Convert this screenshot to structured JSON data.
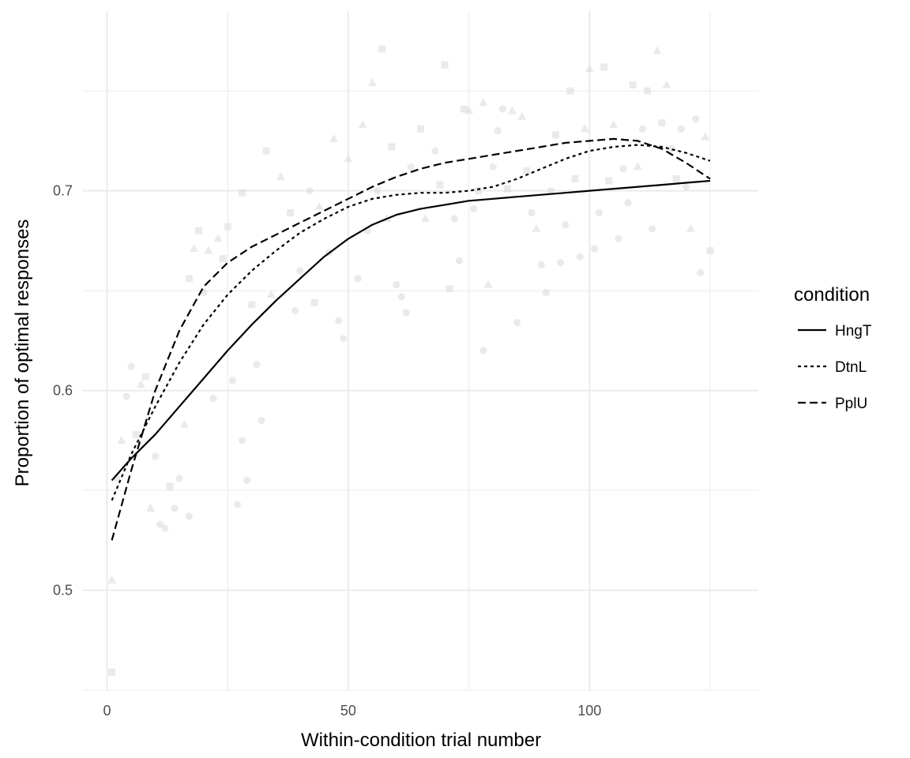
{
  "chart_data": {
    "type": "line",
    "xlabel": "Within-condition trial number",
    "ylabel": "Proportion of optimal responses",
    "xlim": [
      -5,
      135
    ],
    "ylim": [
      0.45,
      0.79
    ],
    "x_ticks": [
      0,
      50,
      100
    ],
    "x_tick_labels": [
      "0",
      "50",
      "100"
    ],
    "y_ticks": [
      0.5,
      0.6,
      0.7
    ],
    "y_tick_labels": [
      "0.5",
      "0.6",
      "0.7"
    ],
    "grid": true,
    "legend": {
      "title": "condition",
      "placement": "right"
    },
    "colors": {
      "line": "#000000",
      "points": "#d9d9d9",
      "grid": "#ebebeb"
    },
    "series": [
      {
        "name": "HngT",
        "dash": "solid",
        "x": [
          1,
          5,
          10,
          15,
          20,
          25,
          30,
          35,
          40,
          45,
          50,
          55,
          60,
          65,
          70,
          75,
          80,
          85,
          90,
          95,
          100,
          105,
          110,
          115,
          120,
          125
        ],
        "y": [
          0.555,
          0.566,
          0.578,
          0.592,
          0.606,
          0.62,
          0.633,
          0.645,
          0.656,
          0.667,
          0.676,
          0.683,
          0.688,
          0.691,
          0.693,
          0.695,
          0.696,
          0.697,
          0.698,
          0.699,
          0.7,
          0.701,
          0.702,
          0.703,
          0.704,
          0.705
        ]
      },
      {
        "name": "DtnL",
        "dash": "dotted",
        "x": [
          1,
          5,
          10,
          15,
          20,
          25,
          30,
          35,
          40,
          45,
          50,
          55,
          60,
          65,
          70,
          75,
          80,
          85,
          90,
          95,
          100,
          105,
          110,
          115,
          120,
          125
        ],
        "y": [
          0.545,
          0.568,
          0.592,
          0.614,
          0.633,
          0.648,
          0.66,
          0.67,
          0.679,
          0.686,
          0.692,
          0.696,
          0.698,
          0.699,
          0.699,
          0.7,
          0.702,
          0.706,
          0.711,
          0.716,
          0.72,
          0.722,
          0.723,
          0.722,
          0.719,
          0.715
        ]
      },
      {
        "name": "PplU",
        "dash": "dashed",
        "x": [
          1,
          5,
          10,
          15,
          20,
          25,
          30,
          35,
          40,
          45,
          50,
          55,
          60,
          65,
          70,
          75,
          80,
          85,
          90,
          95,
          100,
          105,
          110,
          115,
          120,
          125
        ],
        "y": [
          0.525,
          0.56,
          0.6,
          0.63,
          0.652,
          0.664,
          0.672,
          0.678,
          0.684,
          0.69,
          0.696,
          0.702,
          0.707,
          0.711,
          0.714,
          0.716,
          0.718,
          0.72,
          0.722,
          0.724,
          0.725,
          0.726,
          0.725,
          0.721,
          0.714,
          0.706
        ]
      }
    ],
    "points": [
      {
        "x": 1,
        "y": 0.459,
        "shape": "square"
      },
      {
        "x": 1,
        "y": 0.505,
        "shape": "triangle"
      },
      {
        "x": 2,
        "y": 0.556,
        "shape": "circle"
      },
      {
        "x": 3,
        "y": 0.575,
        "shape": "triangle"
      },
      {
        "x": 4,
        "y": 0.597,
        "shape": "circle"
      },
      {
        "x": 5,
        "y": 0.612,
        "shape": "circle"
      },
      {
        "x": 6,
        "y": 0.578,
        "shape": "square"
      },
      {
        "x": 7,
        "y": 0.603,
        "shape": "triangle"
      },
      {
        "x": 8,
        "y": 0.607,
        "shape": "square"
      },
      {
        "x": 9,
        "y": 0.541,
        "shape": "triangle"
      },
      {
        "x": 10,
        "y": 0.567,
        "shape": "circle"
      },
      {
        "x": 11,
        "y": 0.533,
        "shape": "circle"
      },
      {
        "x": 12,
        "y": 0.531,
        "shape": "circle"
      },
      {
        "x": 13,
        "y": 0.552,
        "shape": "square"
      },
      {
        "x": 14,
        "y": 0.541,
        "shape": "circle"
      },
      {
        "x": 15,
        "y": 0.556,
        "shape": "circle"
      },
      {
        "x": 16,
        "y": 0.583,
        "shape": "triangle"
      },
      {
        "x": 17,
        "y": 0.537,
        "shape": "circle"
      },
      {
        "x": 17,
        "y": 0.656,
        "shape": "square"
      },
      {
        "x": 18,
        "y": 0.671,
        "shape": "triangle"
      },
      {
        "x": 19,
        "y": 0.68,
        "shape": "square"
      },
      {
        "x": 20,
        "y": 0.649,
        "shape": "circle"
      },
      {
        "x": 21,
        "y": 0.67,
        "shape": "triangle"
      },
      {
        "x": 22,
        "y": 0.596,
        "shape": "circle"
      },
      {
        "x": 23,
        "y": 0.676,
        "shape": "triangle"
      },
      {
        "x": 24,
        "y": 0.666,
        "shape": "square"
      },
      {
        "x": 25,
        "y": 0.682,
        "shape": "square"
      },
      {
        "x": 26,
        "y": 0.605,
        "shape": "circle"
      },
      {
        "x": 27,
        "y": 0.543,
        "shape": "circle"
      },
      {
        "x": 28,
        "y": 0.699,
        "shape": "square"
      },
      {
        "x": 28,
        "y": 0.575,
        "shape": "circle"
      },
      {
        "x": 29,
        "y": 0.555,
        "shape": "circle"
      },
      {
        "x": 30,
        "y": 0.643,
        "shape": "square"
      },
      {
        "x": 31,
        "y": 0.613,
        "shape": "circle"
      },
      {
        "x": 32,
        "y": 0.585,
        "shape": "circle"
      },
      {
        "x": 33,
        "y": 0.72,
        "shape": "square"
      },
      {
        "x": 34,
        "y": 0.648,
        "shape": "triangle"
      },
      {
        "x": 36,
        "y": 0.707,
        "shape": "triangle"
      },
      {
        "x": 38,
        "y": 0.689,
        "shape": "square"
      },
      {
        "x": 39,
        "y": 0.64,
        "shape": "circle"
      },
      {
        "x": 40,
        "y": 0.66,
        "shape": "circle"
      },
      {
        "x": 42,
        "y": 0.7,
        "shape": "circle"
      },
      {
        "x": 43,
        "y": 0.644,
        "shape": "square"
      },
      {
        "x": 44,
        "y": 0.692,
        "shape": "triangle"
      },
      {
        "x": 46,
        "y": 0.669,
        "shape": "circle"
      },
      {
        "x": 47,
        "y": 0.726,
        "shape": "triangle"
      },
      {
        "x": 48,
        "y": 0.635,
        "shape": "circle"
      },
      {
        "x": 49,
        "y": 0.626,
        "shape": "circle"
      },
      {
        "x": 50,
        "y": 0.716,
        "shape": "triangle"
      },
      {
        "x": 52,
        "y": 0.656,
        "shape": "circle"
      },
      {
        "x": 53,
        "y": 0.733,
        "shape": "triangle"
      },
      {
        "x": 54,
        "y": 0.68,
        "shape": "circle"
      },
      {
        "x": 55,
        "y": 0.754,
        "shape": "triangle"
      },
      {
        "x": 56,
        "y": 0.7,
        "shape": "circle"
      },
      {
        "x": 57,
        "y": 0.771,
        "shape": "square"
      },
      {
        "x": 58,
        "y": 0.686,
        "shape": "triangle"
      },
      {
        "x": 59,
        "y": 0.722,
        "shape": "square"
      },
      {
        "x": 60,
        "y": 0.653,
        "shape": "circle"
      },
      {
        "x": 61,
        "y": 0.647,
        "shape": "circle"
      },
      {
        "x": 62,
        "y": 0.639,
        "shape": "circle"
      },
      {
        "x": 63,
        "y": 0.712,
        "shape": "circle"
      },
      {
        "x": 65,
        "y": 0.731,
        "shape": "square"
      },
      {
        "x": 66,
        "y": 0.686,
        "shape": "triangle"
      },
      {
        "x": 68,
        "y": 0.72,
        "shape": "circle"
      },
      {
        "x": 69,
        "y": 0.703,
        "shape": "square"
      },
      {
        "x": 70,
        "y": 0.763,
        "shape": "square"
      },
      {
        "x": 71,
        "y": 0.651,
        "shape": "square"
      },
      {
        "x": 72,
        "y": 0.686,
        "shape": "circle"
      },
      {
        "x": 73,
        "y": 0.665,
        "shape": "circle"
      },
      {
        "x": 74,
        "y": 0.741,
        "shape": "square"
      },
      {
        "x": 75,
        "y": 0.74,
        "shape": "triangle"
      },
      {
        "x": 76,
        "y": 0.691,
        "shape": "circle"
      },
      {
        "x": 77,
        "y": 0.7,
        "shape": "square"
      },
      {
        "x": 78,
        "y": 0.62,
        "shape": "circle"
      },
      {
        "x": 78,
        "y": 0.744,
        "shape": "triangle"
      },
      {
        "x": 79,
        "y": 0.653,
        "shape": "triangle"
      },
      {
        "x": 80,
        "y": 0.712,
        "shape": "circle"
      },
      {
        "x": 81,
        "y": 0.73,
        "shape": "circle"
      },
      {
        "x": 82,
        "y": 0.741,
        "shape": "circle"
      },
      {
        "x": 83,
        "y": 0.701,
        "shape": "square"
      },
      {
        "x": 84,
        "y": 0.74,
        "shape": "triangle"
      },
      {
        "x": 85,
        "y": 0.634,
        "shape": "circle"
      },
      {
        "x": 86,
        "y": 0.737,
        "shape": "triangle"
      },
      {
        "x": 87,
        "y": 0.71,
        "shape": "square"
      },
      {
        "x": 88,
        "y": 0.689,
        "shape": "circle"
      },
      {
        "x": 89,
        "y": 0.681,
        "shape": "triangle"
      },
      {
        "x": 90,
        "y": 0.663,
        "shape": "circle"
      },
      {
        "x": 91,
        "y": 0.649,
        "shape": "circle"
      },
      {
        "x": 92,
        "y": 0.7,
        "shape": "circle"
      },
      {
        "x": 93,
        "y": 0.728,
        "shape": "square"
      },
      {
        "x": 94,
        "y": 0.664,
        "shape": "circle"
      },
      {
        "x": 95,
        "y": 0.683,
        "shape": "circle"
      },
      {
        "x": 96,
        "y": 0.75,
        "shape": "square"
      },
      {
        "x": 97,
        "y": 0.706,
        "shape": "square"
      },
      {
        "x": 98,
        "y": 0.667,
        "shape": "circle"
      },
      {
        "x": 99,
        "y": 0.731,
        "shape": "triangle"
      },
      {
        "x": 100,
        "y": 0.761,
        "shape": "triangle"
      },
      {
        "x": 101,
        "y": 0.671,
        "shape": "circle"
      },
      {
        "x": 102,
        "y": 0.689,
        "shape": "circle"
      },
      {
        "x": 103,
        "y": 0.762,
        "shape": "square"
      },
      {
        "x": 104,
        "y": 0.705,
        "shape": "square"
      },
      {
        "x": 105,
        "y": 0.733,
        "shape": "triangle"
      },
      {
        "x": 106,
        "y": 0.676,
        "shape": "circle"
      },
      {
        "x": 107,
        "y": 0.711,
        "shape": "circle"
      },
      {
        "x": 108,
        "y": 0.694,
        "shape": "circle"
      },
      {
        "x": 109,
        "y": 0.753,
        "shape": "square"
      },
      {
        "x": 110,
        "y": 0.712,
        "shape": "triangle"
      },
      {
        "x": 111,
        "y": 0.731,
        "shape": "circle"
      },
      {
        "x": 112,
        "y": 0.75,
        "shape": "square"
      },
      {
        "x": 113,
        "y": 0.681,
        "shape": "circle"
      },
      {
        "x": 114,
        "y": 0.77,
        "shape": "triangle"
      },
      {
        "x": 115,
        "y": 0.734,
        "shape": "square"
      },
      {
        "x": 116,
        "y": 0.753,
        "shape": "triangle"
      },
      {
        "x": 117,
        "y": 0.721,
        "shape": "circle"
      },
      {
        "x": 118,
        "y": 0.706,
        "shape": "square"
      },
      {
        "x": 119,
        "y": 0.731,
        "shape": "circle"
      },
      {
        "x": 120,
        "y": 0.702,
        "shape": "circle"
      },
      {
        "x": 121,
        "y": 0.681,
        "shape": "triangle"
      },
      {
        "x": 122,
        "y": 0.736,
        "shape": "circle"
      },
      {
        "x": 123,
        "y": 0.659,
        "shape": "circle"
      },
      {
        "x": 124,
        "y": 0.727,
        "shape": "triangle"
      },
      {
        "x": 125,
        "y": 0.67,
        "shape": "square"
      }
    ]
  }
}
